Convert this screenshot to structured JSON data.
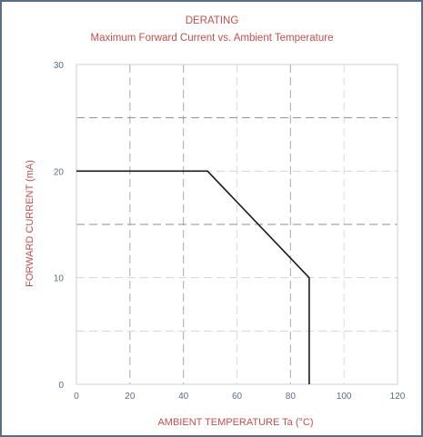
{
  "chart_data": {
    "type": "line",
    "title": "DERATING",
    "subtitle": "Maximum Forward Current vs. Ambient Temperature",
    "xlabel": "AMBIENT TEMPERATURE Ta (°C)",
    "ylabel": "FORWARD CURRENT (mA)",
    "xlim": [
      0,
      120
    ],
    "ylim": [
      0,
      30
    ],
    "xticks": [
      0,
      20,
      40,
      60,
      80,
      100,
      120
    ],
    "yticks": [
      0,
      10,
      20,
      30
    ],
    "grid": true,
    "series": [
      {
        "x": [
          0,
          49,
          87,
          87
        ],
        "y": [
          20,
          20,
          10,
          0
        ]
      }
    ],
    "colors": {
      "text": "#c0504d",
      "ticks": "#5a6d84",
      "line": "#1a1a1a",
      "frame": "#5a6d84"
    }
  }
}
